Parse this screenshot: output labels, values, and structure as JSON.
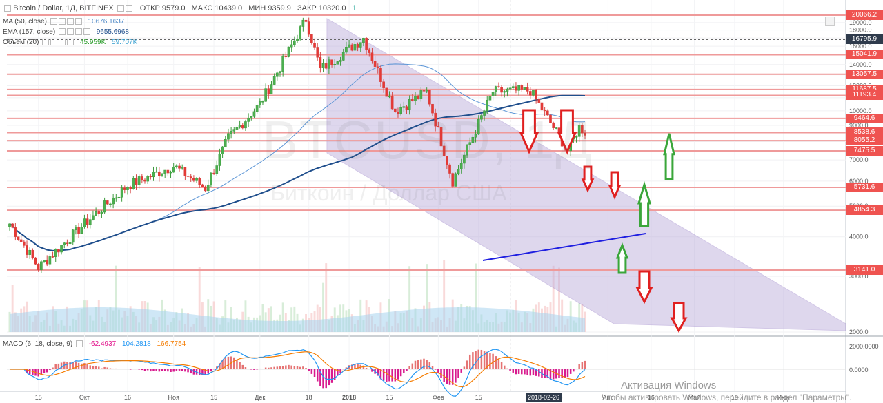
{
  "header": {
    "symbol": "Bitcoin / Dollar, 1Д, BITFINEX",
    "open": "ОТКР 9579.0",
    "high": "МАКС 10439.0",
    "low": "МИН 9359.9",
    "close": "ЗАКР 10320.0",
    "badge": "1"
  },
  "indicators": [
    {
      "label": "MA (50, close)",
      "value": "10676.1637",
      "color": "#4a86c6"
    },
    {
      "label": "EMA (157, close)",
      "value": "9655.6968",
      "color": "#1f4e8c"
    },
    {
      "label": "Объём (20)",
      "value": "45.959K",
      "value2": "59.707K",
      "color": "#2e9e2e",
      "color2": "#3aa0d0"
    }
  ],
  "macd": {
    "label": "MACD (6, 18, close, 9)",
    "v1": "-62.4937",
    "v2": "104.2818",
    "v3": "166.7754",
    "c1": "#e2148c",
    "c2": "#2196f3",
    "c3": "#f57c00",
    "axis": [
      "2000.0000",
      "0.0000"
    ]
  },
  "watermark": {
    "big": "BTCUSD, 1Д",
    "small": "Биткоин / Доллар США"
  },
  "activation": {
    "line1": "Активация Windows",
    "line2": "Чтобы активировать Windows, перейдите в раздел \"Параметры\"."
  },
  "chart_data": {
    "type": "candlestick",
    "title": "Bitcoin / Dollar, 1Д, BITFINEX",
    "y_axis_scale": "log",
    "y_ticks": [
      2000,
      3000,
      4000,
      5000,
      6000,
      7000,
      8000,
      9000,
      10000,
      11000,
      12000,
      13000,
      14000,
      15000,
      16000,
      17000,
      18000,
      19000
    ],
    "price_labels": [
      20066.2,
      16795.9,
      15041.9,
      13057.5,
      11687.5,
      11193.4,
      9464.6,
      8572.9,
      8538.6,
      8055.2,
      7475.5,
      5731.6,
      4854.3,
      3141.0
    ],
    "current_price": 8572.9,
    "x_tick_labels": [
      "15",
      "Окт",
      "16",
      "Ноя",
      "15",
      "Дек",
      "18",
      "2018",
      "15",
      "Фев",
      "15",
      "2018-02-26",
      "15",
      "Апр",
      "16",
      "Май",
      "15",
      "Июн"
    ],
    "price_path_points": [
      [
        "2017-09-05",
        4400
      ],
      [
        "2017-09-15",
        3200
      ],
      [
        "2017-10-01",
        4400
      ],
      [
        "2017-10-16",
        5800
      ],
      [
        "2017-11-01",
        6700
      ],
      [
        "2017-11-12",
        5700
      ],
      [
        "2017-11-20",
        8200
      ],
      [
        "2017-12-01",
        10500
      ],
      [
        "2017-12-17",
        19500
      ],
      [
        "2017-12-22",
        13500
      ],
      [
        "2018-01-06",
        17000
      ],
      [
        "2018-01-17",
        10000
      ],
      [
        "2018-01-28",
        11500
      ],
      [
        "2018-02-06",
        6000
      ],
      [
        "2018-02-20",
        11500
      ],
      [
        "2018-03-05",
        11600
      ],
      [
        "2018-03-18",
        7500
      ],
      [
        "2018-03-22",
        8900
      ],
      [
        "2018-03-24",
        8572.9
      ]
    ],
    "ma50": "line",
    "ema157": "line",
    "channel": "descending, purple shaded",
    "support_line": "rising blue line from Feb 6 to Mar 30",
    "arrows_down": 6,
    "arrows_up": 3
  }
}
